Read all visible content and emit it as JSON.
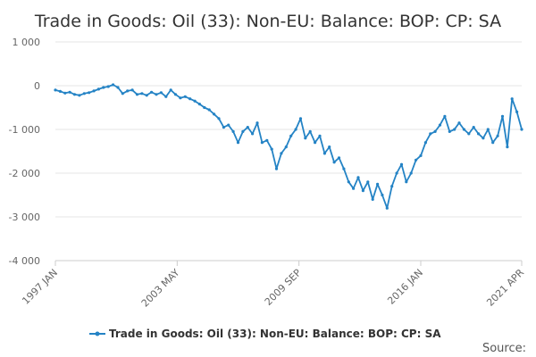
{
  "chart_data": {
    "type": "line",
    "title": "Trade in Goods: Oil (33): Non-EU: Balance: BOP: CP: SA",
    "xlabel": "",
    "ylabel": "",
    "ylim": [
      -4000,
      1000
    ],
    "yticks": [
      1000,
      0,
      -1000,
      -2000,
      -3000,
      -4000
    ],
    "ytick_labels": [
      "1 000",
      "0",
      "-1 000",
      "-2 000",
      "-3 000",
      "-4 000"
    ],
    "xlim": [
      "1997 JAN",
      "2021 APR"
    ],
    "xticks": [
      {
        "label": "1997 JAN",
        "date": "1997-01"
      },
      {
        "label": "2003 MAY",
        "date": "2003-05"
      },
      {
        "label": "2009 SEP",
        "date": "2009-09"
      },
      {
        "label": "2016 JAN",
        "date": "2016-01"
      },
      {
        "label": "2021 APR",
        "date": "2021-04"
      }
    ],
    "grid": true,
    "legend_position": "bottom",
    "color": "#2483c5",
    "series": [
      {
        "name": "Trade in Goods: Oil (33): Non-EU: Balance: BOP: CP: SA",
        "values": [
          [
            "1997-01",
            -100
          ],
          [
            "1997-04",
            -130
          ],
          [
            "1997-07",
            -170
          ],
          [
            "1997-10",
            -150
          ],
          [
            "1998-01",
            -200
          ],
          [
            "1998-04",
            -220
          ],
          [
            "1998-07",
            -180
          ],
          [
            "1998-10",
            -160
          ],
          [
            "1999-01",
            -120
          ],
          [
            "1999-04",
            -80
          ],
          [
            "1999-07",
            -40
          ],
          [
            "1999-10",
            -20
          ],
          [
            "2000-01",
            20
          ],
          [
            "2000-04",
            -40
          ],
          [
            "2000-07",
            -180
          ],
          [
            "2000-10",
            -120
          ],
          [
            "2001-01",
            -100
          ],
          [
            "2001-04",
            -200
          ],
          [
            "2001-07",
            -180
          ],
          [
            "2001-10",
            -220
          ],
          [
            "2002-01",
            -150
          ],
          [
            "2002-04",
            -200
          ],
          [
            "2002-07",
            -160
          ],
          [
            "2002-10",
            -250
          ],
          [
            "2003-01",
            -100
          ],
          [
            "2003-04",
            -200
          ],
          [
            "2003-07",
            -280
          ],
          [
            "2003-10",
            -250
          ],
          [
            "2004-01",
            -300
          ],
          [
            "2004-04",
            -350
          ],
          [
            "2004-07",
            -420
          ],
          [
            "2004-10",
            -500
          ],
          [
            "2005-01",
            -550
          ],
          [
            "2005-04",
            -650
          ],
          [
            "2005-07",
            -750
          ],
          [
            "2005-10",
            -950
          ],
          [
            "2006-01",
            -900
          ],
          [
            "2006-04",
            -1050
          ],
          [
            "2006-07",
            -1300
          ],
          [
            "2006-10",
            -1050
          ],
          [
            "2007-01",
            -950
          ],
          [
            "2007-04",
            -1100
          ],
          [
            "2007-07",
            -850
          ],
          [
            "2007-10",
            -1300
          ],
          [
            "2008-01",
            -1250
          ],
          [
            "2008-04",
            -1450
          ],
          [
            "2008-07",
            -1900
          ],
          [
            "2008-10",
            -1550
          ],
          [
            "2009-01",
            -1400
          ],
          [
            "2009-04",
            -1150
          ],
          [
            "2009-07",
            -1000
          ],
          [
            "2009-10",
            -750
          ],
          [
            "2010-01",
            -1200
          ],
          [
            "2010-04",
            -1050
          ],
          [
            "2010-07",
            -1300
          ],
          [
            "2010-10",
            -1150
          ],
          [
            "2011-01",
            -1550
          ],
          [
            "2011-04",
            -1400
          ],
          [
            "2011-07",
            -1750
          ],
          [
            "2011-10",
            -1650
          ],
          [
            "2012-01",
            -1900
          ],
          [
            "2012-04",
            -2200
          ],
          [
            "2012-07",
            -2350
          ],
          [
            "2012-10",
            -2100
          ],
          [
            "2013-01",
            -2400
          ],
          [
            "2013-04",
            -2200
          ],
          [
            "2013-07",
            -2600
          ],
          [
            "2013-10",
            -2250
          ],
          [
            "2014-01",
            -2500
          ],
          [
            "2014-04",
            -2800
          ],
          [
            "2014-07",
            -2300
          ],
          [
            "2014-10",
            -2000
          ],
          [
            "2015-01",
            -1800
          ],
          [
            "2015-04",
            -2200
          ],
          [
            "2015-07",
            -2000
          ],
          [
            "2015-10",
            -1700
          ],
          [
            "2016-01",
            -1600
          ],
          [
            "2016-04",
            -1300
          ],
          [
            "2016-07",
            -1100
          ],
          [
            "2016-10",
            -1050
          ],
          [
            "2017-01",
            -900
          ],
          [
            "2017-04",
            -700
          ],
          [
            "2017-07",
            -1050
          ],
          [
            "2017-10",
            -1000
          ],
          [
            "2018-01",
            -850
          ],
          [
            "2018-04",
            -1000
          ],
          [
            "2018-07",
            -1100
          ],
          [
            "2018-10",
            -950
          ],
          [
            "2019-01",
            -1100
          ],
          [
            "2019-04",
            -1200
          ],
          [
            "2019-07",
            -1000
          ],
          [
            "2019-10",
            -1300
          ],
          [
            "2020-01",
            -1150
          ],
          [
            "2020-04",
            -700
          ],
          [
            "2020-07",
            -1400
          ],
          [
            "2020-10",
            -300
          ],
          [
            "2021-01",
            -600
          ],
          [
            "2021-04",
            -1000
          ]
        ]
      }
    ]
  },
  "footer": {
    "source_label": "Source:"
  }
}
